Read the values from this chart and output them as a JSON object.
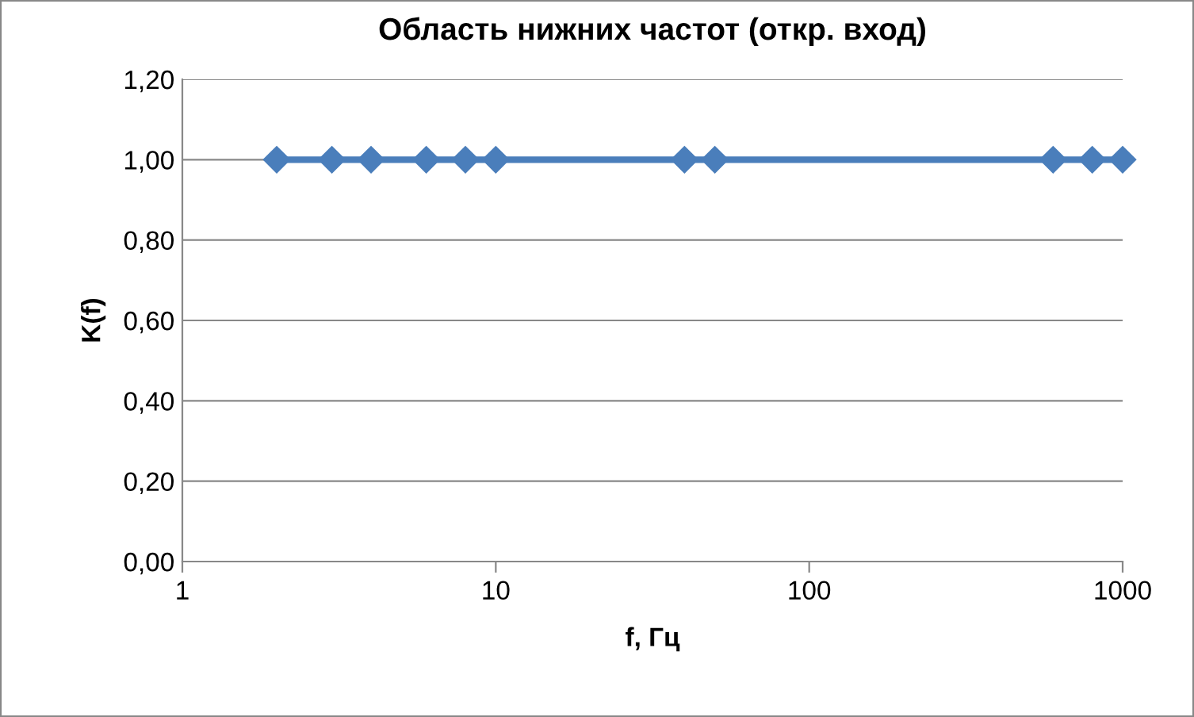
{
  "chart_data": {
    "type": "line",
    "title": "Область нижних частот (откр. вход)",
    "xlabel": "f, Гц",
    "ylabel": "K(f)",
    "x": [
      2,
      3,
      4,
      6,
      8,
      10,
      40,
      50,
      600,
      800,
      1000
    ],
    "series": [
      {
        "color": "#4a7ebb",
        "values": [
          1.0,
          1.0,
          1.0,
          1.0,
          1.0,
          1.0,
          1.0,
          1.0,
          1.0,
          1.0,
          1.0
        ]
      }
    ],
    "log": "x",
    "xlim": [
      1,
      1000
    ],
    "xticks": [
      1,
      10,
      100,
      1000
    ],
    "ylim": [
      0,
      1.2
    ],
    "yticks": [
      {
        "value": 0,
        "label": "0,00"
      },
      {
        "value": 0.2,
        "label": "0,20"
      },
      {
        "value": 0.4,
        "label": "0,40"
      },
      {
        "value": 0.6,
        "label": "0,60"
      },
      {
        "value": 0.8,
        "label": "0,80"
      },
      {
        "value": 1.0,
        "label": "1,00"
      },
      {
        "value": 1.2,
        "label": "1,20"
      }
    ],
    "grid": "y",
    "legend": false,
    "marker": "diamond",
    "line_style": "solid"
  }
}
